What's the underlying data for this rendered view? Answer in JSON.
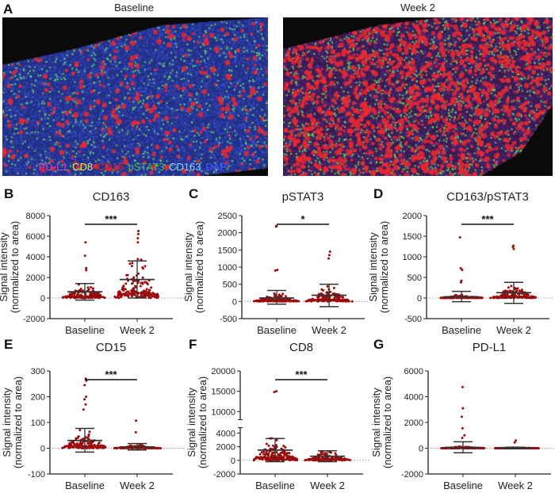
{
  "panel_a": {
    "letter": "A",
    "images": [
      {
        "label": "Baseline"
      },
      {
        "label": "Week 2"
      }
    ],
    "legend": [
      {
        "text": "PD-L1",
        "color": "#e040b0"
      },
      {
        "text": "CD8",
        "color": "#f2e830"
      },
      {
        "text": "CD15",
        "color": "#e8231d"
      },
      {
        "text": "pSTAT3",
        "color": "#43c443"
      },
      {
        "text": "CD163",
        "color": "#8fd3ff"
      },
      {
        "text": "DAPI",
        "color": "#4060ff"
      }
    ]
  },
  "chart_data": [
    {
      "letter": "B",
      "type": "scatter",
      "title": "CD163",
      "ylabel": [
        "Signal intensity",
        "(normalized to area)"
      ],
      "categories": [
        "Baseline",
        "Week 2"
      ],
      "ylim": [
        -2000,
        8000
      ],
      "yticks": [
        -2000,
        0,
        2000,
        4000,
        6000,
        8000
      ],
      "significance": "***",
      "zero_line": true,
      "groups": [
        {
          "mean": 600,
          "sd_upper": 1400,
          "sd_lower": -200,
          "bulk_max": 2900,
          "high_points": [
            5400,
            4100,
            2900,
            2700
          ]
        },
        {
          "mean": 1800,
          "sd_upper": 3600,
          "sd_lower": 0,
          "bulk_max": 5500,
          "high_points": [
            6500,
            6200,
            5800,
            5400
          ]
        }
      ]
    },
    {
      "letter": "C",
      "type": "scatter",
      "title": "pSTAT3",
      "ylabel": [
        "Signal intensity",
        "(normalized to area)"
      ],
      "categories": [
        "Baseline",
        "Week 2"
      ],
      "ylim": [
        -500,
        2500
      ],
      "yticks": [
        -500,
        0,
        500,
        1000,
        1500,
        2000,
        2500
      ],
      "significance": "*",
      "zero_line": true,
      "groups": [
        {
          "mean": 100,
          "sd_upper": 320,
          "sd_lower": -80,
          "bulk_max": 600,
          "high_points": [
            2200,
            2180,
            920,
            900
          ]
        },
        {
          "mean": 180,
          "sd_upper": 500,
          "sd_lower": -150,
          "bulk_max": 1100,
          "high_points": [
            1450,
            1350,
            1250
          ]
        }
      ]
    },
    {
      "letter": "D",
      "type": "scatter",
      "title": "CD163/pSTAT3",
      "ylabel": [
        "Signal intensity",
        "(normalized to area)"
      ],
      "categories": [
        "Baseline",
        "Week 2"
      ],
      "ylim": [
        -500,
        2000
      ],
      "yticks": [
        -500,
        0,
        500,
        1000,
        1500,
        2000
      ],
      "significance": "***",
      "zero_line": true,
      "groups": [
        {
          "mean": 30,
          "sd_upper": 160,
          "sd_lower": -90,
          "bulk_max": 300,
          "high_points": [
            1470,
            720,
            680,
            420,
            380
          ]
        },
        {
          "mean": 130,
          "sd_upper": 380,
          "sd_lower": -130,
          "bulk_max": 900,
          "high_points": [
            1270,
            1240,
            1190
          ]
        }
      ]
    },
    {
      "letter": "E",
      "type": "scatter",
      "title": "CD15",
      "ylabel": [
        "Signal intensity",
        "(normalized to area)"
      ],
      "categories": [
        "Baseline",
        "Week 2"
      ],
      "ylim": [
        -100,
        300
      ],
      "yticks": [
        -100,
        0,
        100,
        200,
        300
      ],
      "significance": "***",
      "zero_line": true,
      "groups": [
        {
          "mean": 30,
          "sd_upper": 77,
          "sd_lower": -15,
          "bulk_max": 120,
          "high_points": [
            270,
            262,
            245,
            200,
            190,
            170,
            150
          ]
        },
        {
          "mean": 5,
          "sd_upper": 18,
          "sd_lower": -7,
          "bulk_max": 35,
          "high_points": [
            107,
            62
          ]
        }
      ]
    },
    {
      "letter": "F",
      "type": "scatter",
      "title": "CD8",
      "ylabel": [
        "Signal intensity",
        "(normalized to area)"
      ],
      "categories": [
        "Baseline",
        "Week 2"
      ],
      "ylim": [
        -2000,
        20000
      ],
      "axis_break": [
        4800,
        8000
      ],
      "yticks": [
        -2000,
        0,
        2000,
        4000,
        10000,
        15000,
        20000
      ],
      "significance": "***",
      "zero_line": true,
      "groups": [
        {
          "mean": 1500,
          "sd_upper": 3200,
          "sd_lower": -200,
          "bulk_max": 4800,
          "high_points": [
            15000,
            14800
          ]
        },
        {
          "mean": 600,
          "sd_upper": 1400,
          "sd_lower": -200,
          "bulk_max": 3700,
          "high_points": []
        }
      ]
    },
    {
      "letter": "G",
      "type": "scatter",
      "title": "PD-L1",
      "ylabel": [
        "Signal intensity",
        "(normalized to area)"
      ],
      "categories": [
        "Baseline",
        "Week 2"
      ],
      "ylim": [
        -2000,
        6000
      ],
      "yticks": [
        -2000,
        0,
        2000,
        4000,
        6000
      ],
      "significance": "",
      "zero_line": true,
      "groups": [
        {
          "mean": 50,
          "sd_upper": 500,
          "sd_lower": -350,
          "bulk_max": 400,
          "high_points": [
            4750,
            3100,
            2450,
            1550,
            1000,
            800
          ]
        },
        {
          "mean": 20,
          "sd_upper": 80,
          "sd_lower": -40,
          "bulk_max": 300,
          "high_points": [
            600,
            450
          ]
        }
      ]
    }
  ],
  "colors": {
    "points": "#9b0b0b",
    "bars": "#333333",
    "zero_line": "#999999"
  }
}
